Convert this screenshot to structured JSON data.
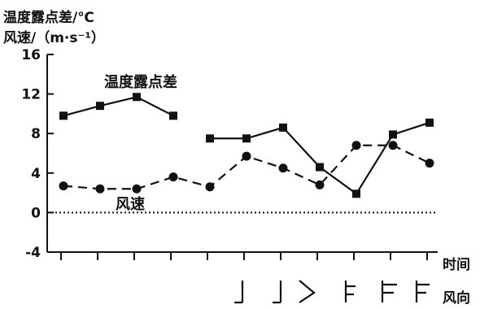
{
  "chart_data": {
    "type": "line",
    "ytitle_line1": "温度露点差/℃",
    "ytitle_line2": "风速/（m·s⁻¹）",
    "xlabel": "时间",
    "wind_dir_label": "风向",
    "ylim": [
      -4,
      16
    ],
    "yticks": [
      "16",
      "12",
      "8",
      "4",
      "0",
      "-4"
    ],
    "ytick_values": [
      16,
      12,
      8,
      4,
      0,
      -4
    ],
    "x_count": 11,
    "series": [
      {
        "name": "温度露点差",
        "style": "solid",
        "marker": "square",
        "segments": [
          [
            [
              0,
              9.8
            ],
            [
              1,
              10.8
            ],
            [
              2,
              11.7
            ],
            [
              3,
              9.8
            ]
          ],
          [
            [
              4,
              7.5
            ],
            [
              5,
              7.5
            ],
            [
              6,
              8.6
            ],
            [
              7,
              4.6
            ],
            [
              8,
              1.9
            ],
            [
              9,
              7.9
            ],
            [
              10,
              9.1
            ]
          ]
        ]
      },
      {
        "name": "风速",
        "style": "dashed",
        "marker": "circle",
        "segments": [
          [
            [
              0,
              2.7
            ],
            [
              1,
              2.4
            ],
            [
              2,
              2.4
            ],
            [
              3,
              3.6
            ],
            [
              4,
              2.6
            ],
            [
              5,
              5.7
            ],
            [
              6,
              4.5
            ],
            [
              7,
              2.8
            ],
            [
              8,
              6.8
            ],
            [
              9,
              6.8
            ],
            [
              10,
              5.0
            ]
          ]
        ]
      }
    ],
    "zero_line": "dotted"
  }
}
